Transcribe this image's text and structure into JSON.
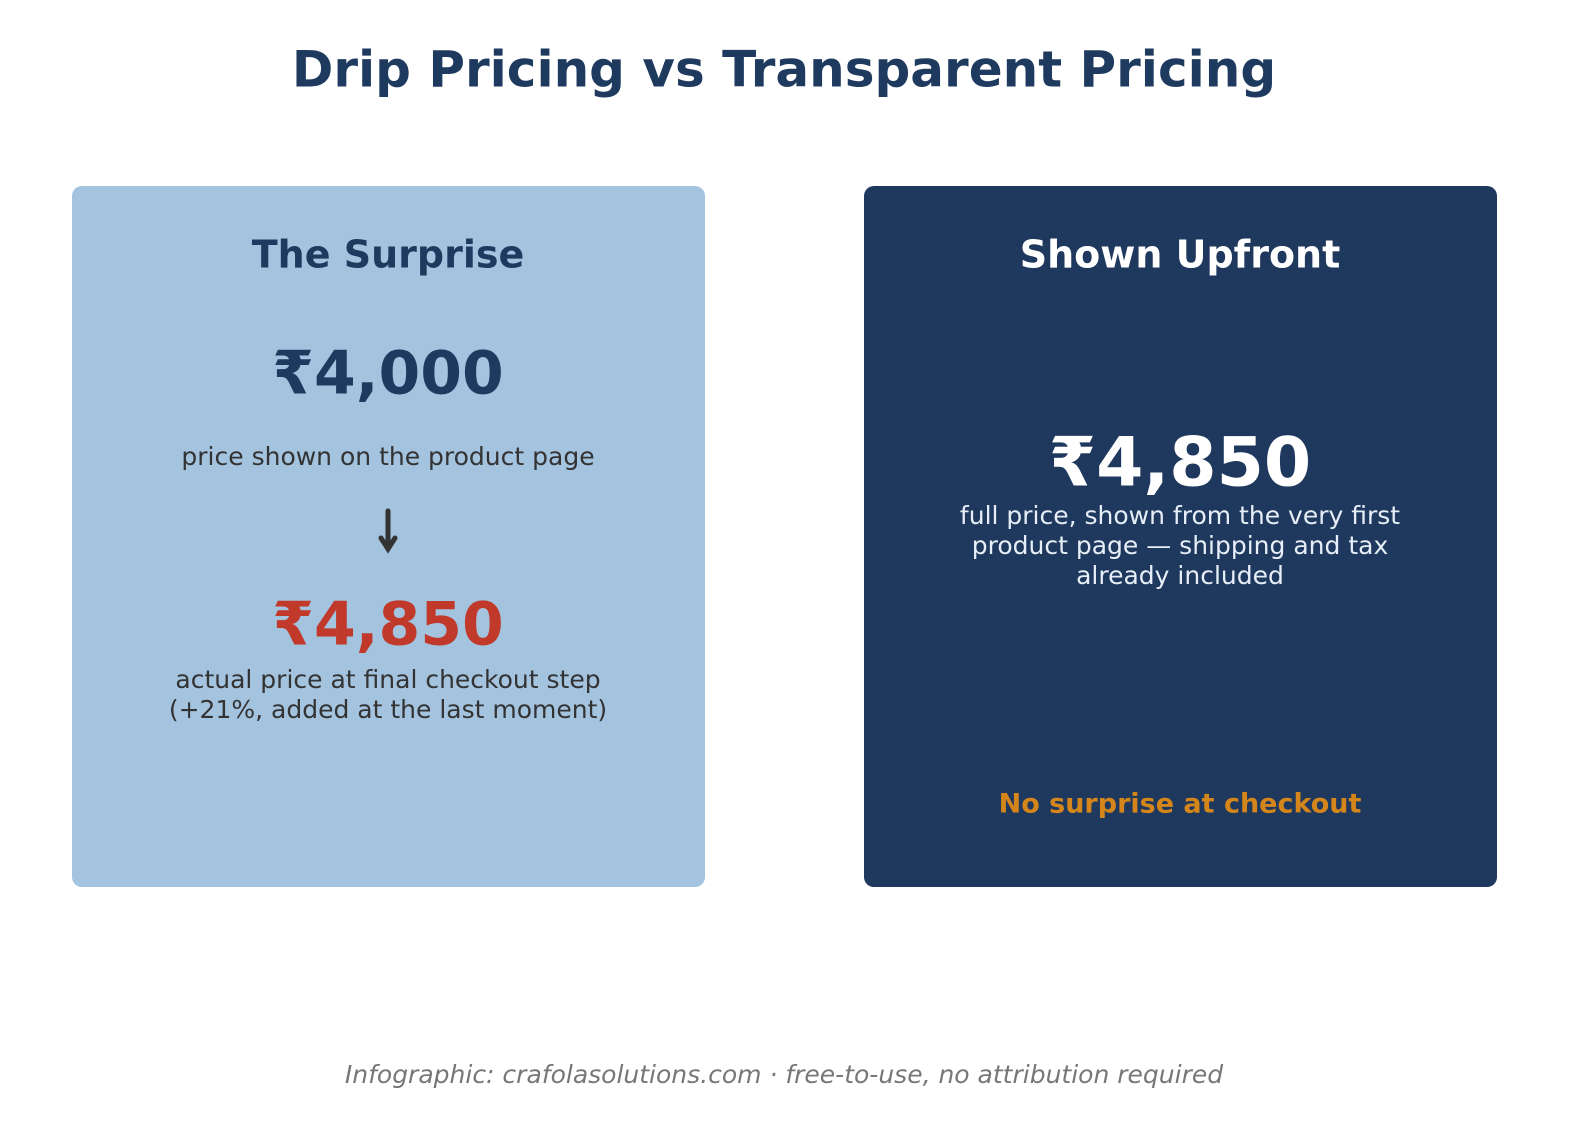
{
  "header": {
    "title": "Drip Pricing vs Transparent Pricing"
  },
  "cards": [
    {
      "heading": "The Surprise",
      "shown_price": "₹4,000",
      "shown_caption": "price shown on the product page",
      "final_price": "₹4,850",
      "final_caption": [
        "actual price at final checkout step",
        "(+21%, added at the last moment)"
      ]
    },
    {
      "heading": "Shown Upfront",
      "price": "₹4,850",
      "caption": [
        "full price, shown from the very first",
        "product page — shipping and tax",
        "already included"
      ],
      "note": "No surprise at checkout"
    }
  ],
  "footer": {
    "credit": "Infographic: crafolasolutions.com · free-to-use, no attribution required"
  }
}
